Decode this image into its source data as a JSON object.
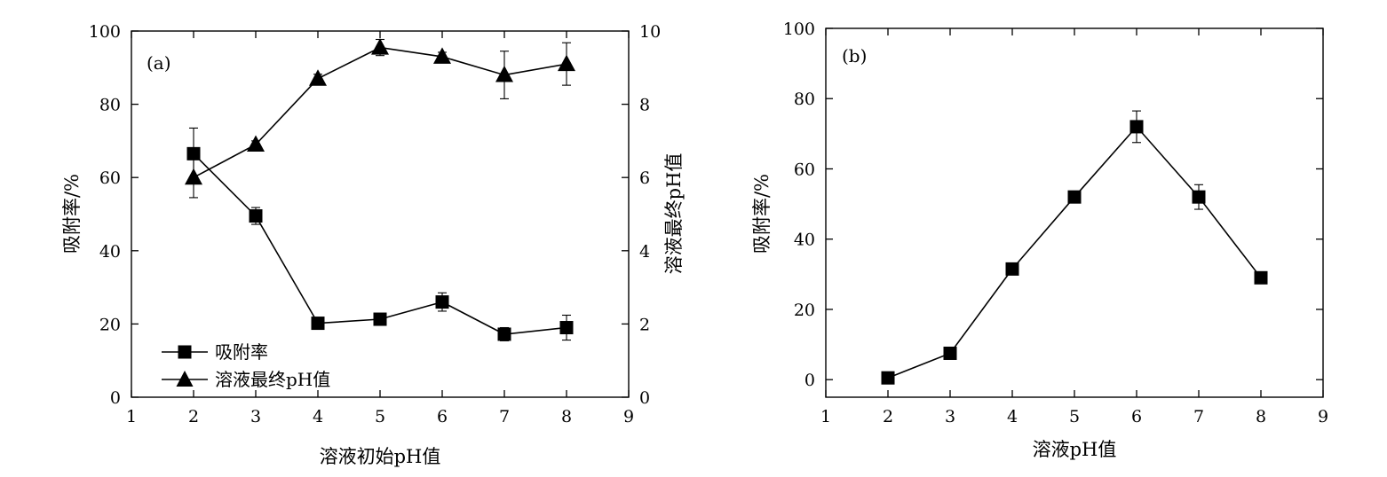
{
  "chart_data": [
    {
      "type": "line",
      "panel_label": "(a)",
      "xlabel": "溶液初始pH值",
      "ylabel": "吸附率/%",
      "y2label": "溶液最终pH值",
      "xlim": [
        1,
        9
      ],
      "ylim": [
        0,
        100
      ],
      "y2lim": [
        0,
        10
      ],
      "xticks": [
        "1",
        "2",
        "3",
        "4",
        "5",
        "6",
        "7",
        "8",
        "9"
      ],
      "yticks": [
        "0",
        "20",
        "40",
        "60",
        "80",
        "100"
      ],
      "y2ticks": [
        "0",
        "2",
        "4",
        "6",
        "8",
        "10"
      ],
      "grid": false,
      "legend_position": "bottom-left",
      "series": [
        {
          "name": "吸附率",
          "axis": "left",
          "marker": "square",
          "x": [
            2,
            3,
            4,
            5,
            6,
            7,
            8
          ],
          "y": [
            66.5,
            49.5,
            20.2,
            21.3,
            26,
            17.2,
            19
          ],
          "err": [
            7,
            2.3,
            0.8,
            1.2,
            2.5,
            1.8,
            3.4
          ]
        },
        {
          "name": "溶液最终pH值",
          "axis": "right",
          "marker": "triangle",
          "x": [
            2,
            3,
            4,
            5,
            6,
            7,
            8
          ],
          "y": [
            6.0,
            6.9,
            8.7,
            9.55,
            9.3,
            8.8,
            9.1
          ],
          "err": [
            0.55,
            0.1,
            0.12,
            0.22,
            0.12,
            0.65,
            0.58
          ]
        }
      ]
    },
    {
      "type": "line",
      "panel_label": "(b)",
      "xlabel": "溶液pH值",
      "ylabel": "吸附率/%",
      "xlim": [
        1,
        9
      ],
      "ylim": [
        -5,
        100
      ],
      "xticks": [
        "1",
        "2",
        "3",
        "4",
        "5",
        "6",
        "7",
        "8",
        "9"
      ],
      "yticks": [
        "0",
        "20",
        "40",
        "60",
        "80",
        "100"
      ],
      "grid": false,
      "series": [
        {
          "marker": "square",
          "x": [
            2,
            3,
            4,
            5,
            6,
            7,
            8
          ],
          "y": [
            0.5,
            7.5,
            31.5,
            52,
            72,
            52,
            29
          ],
          "err": [
            0.4,
            0.8,
            1.2,
            1,
            4.5,
            3.5,
            1
          ]
        }
      ]
    }
  ]
}
